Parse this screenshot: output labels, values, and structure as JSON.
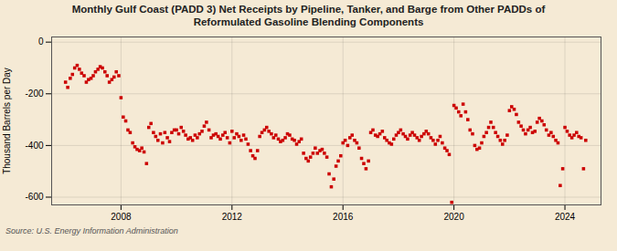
{
  "chart_data": {
    "type": "scatter",
    "title": "Monthly Gulf Coast (PADD 3) Net Receipts by Pipeline, Tanker, and Barge from Other PADDs of\nReformulated Gasoline Blending Components",
    "ylabel": "Thousand Barrels per Day",
    "source": "Source: U.S. Energy Information Administration",
    "color": "#cc0000",
    "marker": "square",
    "grid": true,
    "xlim": [
      2005.5,
      2025.3
    ],
    "xticks": [
      2008,
      2012,
      2016,
      2020,
      2024
    ],
    "ylim": [
      -630,
      20
    ],
    "yticks": [
      0,
      -200,
      -400,
      -600
    ],
    "x": [
      2006.0,
      2006.08,
      2006.17,
      2006.25,
      2006.33,
      2006.42,
      2006.5,
      2006.58,
      2006.67,
      2006.75,
      2006.83,
      2006.92,
      2007.0,
      2007.08,
      2007.17,
      2007.25,
      2007.33,
      2007.42,
      2007.5,
      2007.58,
      2007.67,
      2007.75,
      2007.83,
      2007.92,
      2008.0,
      2008.08,
      2008.17,
      2008.25,
      2008.33,
      2008.42,
      2008.5,
      2008.58,
      2008.67,
      2008.75,
      2008.83,
      2008.92,
      2009.0,
      2009.08,
      2009.17,
      2009.25,
      2009.33,
      2009.42,
      2009.5,
      2009.58,
      2009.67,
      2009.75,
      2009.83,
      2009.92,
      2010.0,
      2010.08,
      2010.17,
      2010.25,
      2010.33,
      2010.42,
      2010.5,
      2010.58,
      2010.67,
      2010.75,
      2010.83,
      2010.92,
      2011.0,
      2011.08,
      2011.17,
      2011.25,
      2011.33,
      2011.42,
      2011.5,
      2011.58,
      2011.67,
      2011.75,
      2011.83,
      2011.92,
      2012.0,
      2012.08,
      2012.17,
      2012.25,
      2012.33,
      2012.42,
      2012.5,
      2012.58,
      2012.67,
      2012.75,
      2012.83,
      2012.92,
      2013.0,
      2013.08,
      2013.17,
      2013.25,
      2013.33,
      2013.42,
      2013.5,
      2013.58,
      2013.67,
      2013.75,
      2013.83,
      2013.92,
      2014.0,
      2014.08,
      2014.17,
      2014.25,
      2014.33,
      2014.42,
      2014.5,
      2014.58,
      2014.67,
      2014.75,
      2014.83,
      2014.92,
      2015.0,
      2015.08,
      2015.17,
      2015.25,
      2015.33,
      2015.42,
      2015.5,
      2015.58,
      2015.67,
      2015.75,
      2015.83,
      2015.92,
      2016.0,
      2016.08,
      2016.17,
      2016.25,
      2016.33,
      2016.42,
      2016.5,
      2016.58,
      2016.67,
      2016.75,
      2016.83,
      2016.92,
      2017.0,
      2017.08,
      2017.17,
      2017.25,
      2017.33,
      2017.42,
      2017.5,
      2017.58,
      2017.67,
      2017.75,
      2017.83,
      2017.92,
      2018.0,
      2018.08,
      2018.17,
      2018.25,
      2018.33,
      2018.42,
      2018.5,
      2018.58,
      2018.67,
      2018.75,
      2018.83,
      2018.92,
      2019.0,
      2019.08,
      2019.17,
      2019.25,
      2019.33,
      2019.42,
      2019.5,
      2019.58,
      2019.67,
      2019.75,
      2019.83,
      2019.92,
      2020.0,
      2020.08,
      2020.17,
      2020.25,
      2020.33,
      2020.42,
      2020.5,
      2020.58,
      2020.67,
      2020.75,
      2020.83,
      2020.92,
      2021.0,
      2021.08,
      2021.17,
      2021.25,
      2021.33,
      2021.42,
      2021.5,
      2021.58,
      2021.67,
      2021.75,
      2021.83,
      2021.92,
      2022.0,
      2022.08,
      2022.17,
      2022.25,
      2022.33,
      2022.42,
      2022.5,
      2022.58,
      2022.67,
      2022.75,
      2022.83,
      2022.92,
      2023.0,
      2023.08,
      2023.17,
      2023.25,
      2023.33,
      2023.42,
      2023.5,
      2023.58,
      2023.67,
      2023.75,
      2023.83,
      2023.92,
      2024.0,
      2024.08,
      2024.17,
      2024.25,
      2024.33,
      2024.42,
      2024.5,
      2024.58,
      2024.67,
      2024.75
    ],
    "values": [
      -155,
      -175,
      -140,
      -125,
      -100,
      -90,
      -105,
      -120,
      -130,
      -155,
      -145,
      -140,
      -130,
      -115,
      -105,
      -95,
      -100,
      -115,
      -130,
      -155,
      -145,
      -135,
      -115,
      -130,
      -215,
      -290,
      -305,
      -340,
      -350,
      -390,
      -405,
      -415,
      -420,
      -410,
      -425,
      -470,
      -330,
      -315,
      -350,
      -365,
      -380,
      -355,
      -390,
      -350,
      -370,
      -385,
      -350,
      -340,
      -340,
      -355,
      -330,
      -345,
      -360,
      -375,
      -370,
      -380,
      -360,
      -370,
      -355,
      -345,
      -325,
      -310,
      -340,
      -370,
      -360,
      -355,
      -365,
      -375,
      -360,
      -350,
      -370,
      -390,
      -345,
      -370,
      -355,
      -365,
      -380,
      -360,
      -375,
      -395,
      -420,
      -440,
      -450,
      -420,
      -365,
      -350,
      -340,
      -330,
      -345,
      -355,
      -370,
      -360,
      -375,
      -385,
      -380,
      -370,
      -355,
      -360,
      -375,
      -380,
      -395,
      -385,
      -375,
      -430,
      -450,
      -460,
      -445,
      -430,
      -410,
      -430,
      -420,
      -415,
      -430,
      -445,
      -510,
      -560,
      -530,
      -480,
      -460,
      -440,
      -390,
      -380,
      -400,
      -370,
      -360,
      -380,
      -390,
      -410,
      -450,
      -470,
      -490,
      -460,
      -350,
      -340,
      -360,
      -365,
      -355,
      -345,
      -370,
      -380,
      -390,
      -395,
      -375,
      -360,
      -350,
      -340,
      -355,
      -365,
      -375,
      -360,
      -350,
      -360,
      -370,
      -380,
      -365,
      -355,
      -345,
      -355,
      -370,
      -380,
      -395,
      -380,
      -365,
      -390,
      -410,
      -420,
      -435,
      -620,
      -245,
      -255,
      -270,
      -285,
      -240,
      -270,
      -300,
      -340,
      -355,
      -400,
      -415,
      -410,
      -390,
      -365,
      -350,
      -330,
      -310,
      -330,
      -350,
      -365,
      -380,
      -395,
      -380,
      -360,
      -265,
      -250,
      -260,
      -280,
      -310,
      -325,
      -340,
      -355,
      -340,
      -330,
      -350,
      -345,
      -310,
      -295,
      -305,
      -320,
      -340,
      -360,
      -350,
      -365,
      -380,
      -390,
      -555,
      -490,
      -330,
      -345,
      -360,
      -370,
      -360,
      -350,
      -365,
      -370,
      -490,
      -380
    ]
  }
}
